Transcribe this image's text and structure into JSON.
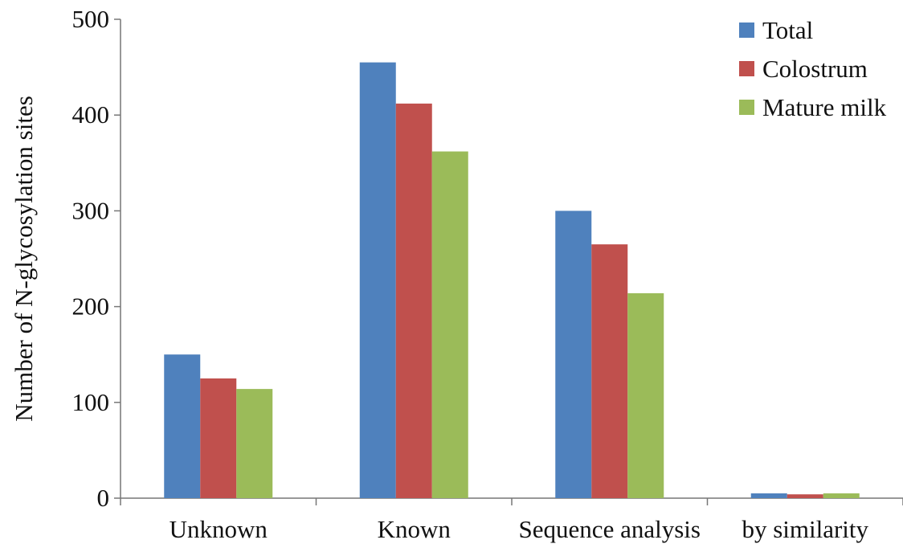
{
  "chart_data": {
    "type": "bar",
    "title": "",
    "xlabel": "",
    "ylabel": "Number of N-glycosylation sites",
    "categories": [
      "Unknown",
      "Known",
      "Sequence analysis",
      "by similarity"
    ],
    "series": [
      {
        "name": "Total",
        "values": [
          150,
          455,
          300,
          5
        ],
        "color": "#4f81bd"
      },
      {
        "name": "Colostrum",
        "values": [
          125,
          412,
          265,
          4
        ],
        "color": "#c0504d"
      },
      {
        "name": "Mature milk",
        "values": [
          114,
          362,
          214,
          5
        ],
        "color": "#9bbb59"
      }
    ],
    "ylim": [
      0,
      500
    ],
    "yticks": [
      "0",
      "100",
      "200",
      "300",
      "400",
      "500"
    ],
    "grid": false,
    "legend_position": "top-right"
  }
}
